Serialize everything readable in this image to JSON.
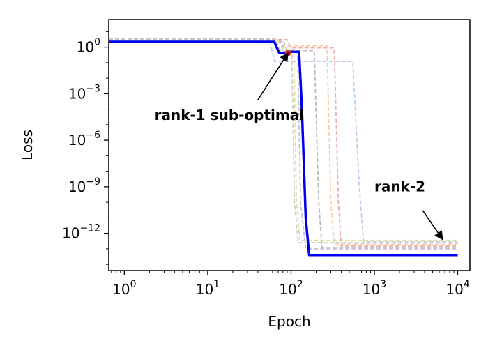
{
  "chart_data": {
    "type": "line",
    "title": "",
    "xlabel": "Epoch",
    "ylabel": "Loss",
    "xscale": "log",
    "yscale": "log",
    "xlim": [
      0.65,
      14000
    ],
    "ylim": [
      4e-15,
      60
    ],
    "grid": false,
    "x_ticks": [
      {
        "base": "10",
        "exp": "0",
        "value": 1
      },
      {
        "base": "10",
        "exp": "1",
        "value": 10
      },
      {
        "base": "10",
        "exp": "2",
        "value": 100
      },
      {
        "base": "10",
        "exp": "3",
        "value": 1000
      },
      {
        "base": "10",
        "exp": "4",
        "value": 10000
      }
    ],
    "y_ticks": [
      {
        "base": "10",
        "exp": "0",
        "value": 1
      },
      {
        "base": "10",
        "exp": "−3",
        "value": 0.001
      },
      {
        "base": "10",
        "exp": "−6",
        "value": 1e-06
      },
      {
        "base": "10",
        "exp": "−9",
        "value": 1e-09
      },
      {
        "base": "10",
        "exp": "−12",
        "value": 1e-12
      }
    ],
    "series": [
      {
        "color": "#0000ee",
        "style": "solid",
        "points": [
          [
            0.65,
            2.2
          ],
          [
            63,
            2.2
          ],
          [
            72,
            0.42
          ],
          [
            92,
            0.42
          ],
          [
            98,
            0.5
          ],
          [
            125,
            0.5
          ],
          [
            135,
            0.0001
          ],
          [
            150,
            1e-11
          ],
          [
            165,
            4e-14
          ],
          [
            10000,
            4e-14
          ]
        ]
      },
      {
        "color": "#aec7e8",
        "style": "dashed",
        "points": [
          [
            0.65,
            3.5
          ],
          [
            55,
            3.5
          ],
          [
            63,
            0.12
          ],
          [
            550,
            0.12
          ],
          [
            660,
            1e-09
          ],
          [
            740,
            3e-13
          ],
          [
            10000,
            3e-13
          ]
        ]
      },
      {
        "color": "#e8a09a",
        "style": "dashed",
        "points": [
          [
            0.65,
            3.0
          ],
          [
            90,
            3.0
          ],
          [
            100,
            0.9
          ],
          [
            330,
            0.9
          ],
          [
            370,
            1e-10
          ],
          [
            400,
            1.5e-13
          ],
          [
            10000,
            1.5e-13
          ]
        ]
      },
      {
        "color": "#f6c6a0",
        "style": "dashed",
        "points": [
          [
            0.65,
            3.2
          ],
          [
            70,
            3.2
          ],
          [
            80,
            1.2
          ],
          [
            270,
            1.2
          ],
          [
            300,
            1e-10
          ],
          [
            330,
            2e-13
          ],
          [
            10000,
            2e-13
          ]
        ]
      },
      {
        "color": "#aaaaaa",
        "style": "dashed",
        "points": [
          [
            0.65,
            2.8
          ],
          [
            80,
            2.8
          ],
          [
            90,
            0.6
          ],
          [
            190,
            0.6
          ],
          [
            215,
            1e-10
          ],
          [
            235,
            1.2e-13
          ],
          [
            10000,
            1.2e-13
          ]
        ]
      },
      {
        "color": "#c5b0d5",
        "style": "dashed",
        "points": [
          [
            0.65,
            2.5
          ],
          [
            75,
            2.5
          ],
          [
            85,
            0.5
          ],
          [
            120,
            0.5
          ],
          [
            130,
            1e-10
          ],
          [
            150,
            1e-13
          ],
          [
            10000,
            1e-13
          ]
        ]
      },
      {
        "color": "#dbdb8d",
        "style": "dashed",
        "points": [
          [
            0.65,
            2.6
          ],
          [
            70,
            2.6
          ],
          [
            80,
            0.7
          ],
          [
            108,
            0.7
          ],
          [
            116,
            1e-10
          ],
          [
            128,
            3.5e-13
          ],
          [
            10000,
            3.5e-13
          ]
        ]
      },
      {
        "color": "#c4c4c4",
        "style": "dashed",
        "points": [
          [
            0.65,
            3.3
          ],
          [
            65,
            3.3
          ],
          [
            75,
            0.55
          ],
          [
            102,
            0.55
          ],
          [
            110,
            1e-10
          ],
          [
            122,
            2.5e-13
          ],
          [
            10000,
            2.5e-13
          ]
        ]
      }
    ],
    "highlight_point": {
      "x": 92,
      "y": 0.42,
      "color": "#d62728"
    },
    "annotations": [
      {
        "text": "rank-1 sub-optimal",
        "x": 2.3,
        "y": 2e-05,
        "arrow_to_x": 92,
        "arrow_to_y": 0.42,
        "arrow_from_x": 40,
        "arrow_from_y": 0.0004
      },
      {
        "text": "rank-2",
        "x": 1000,
        "y": 5e-10,
        "arrow_to_x": 6600,
        "arrow_to_y": 4e-13,
        "arrow_from_x": 3800,
        "arrow_from_y": 3e-11
      }
    ]
  }
}
